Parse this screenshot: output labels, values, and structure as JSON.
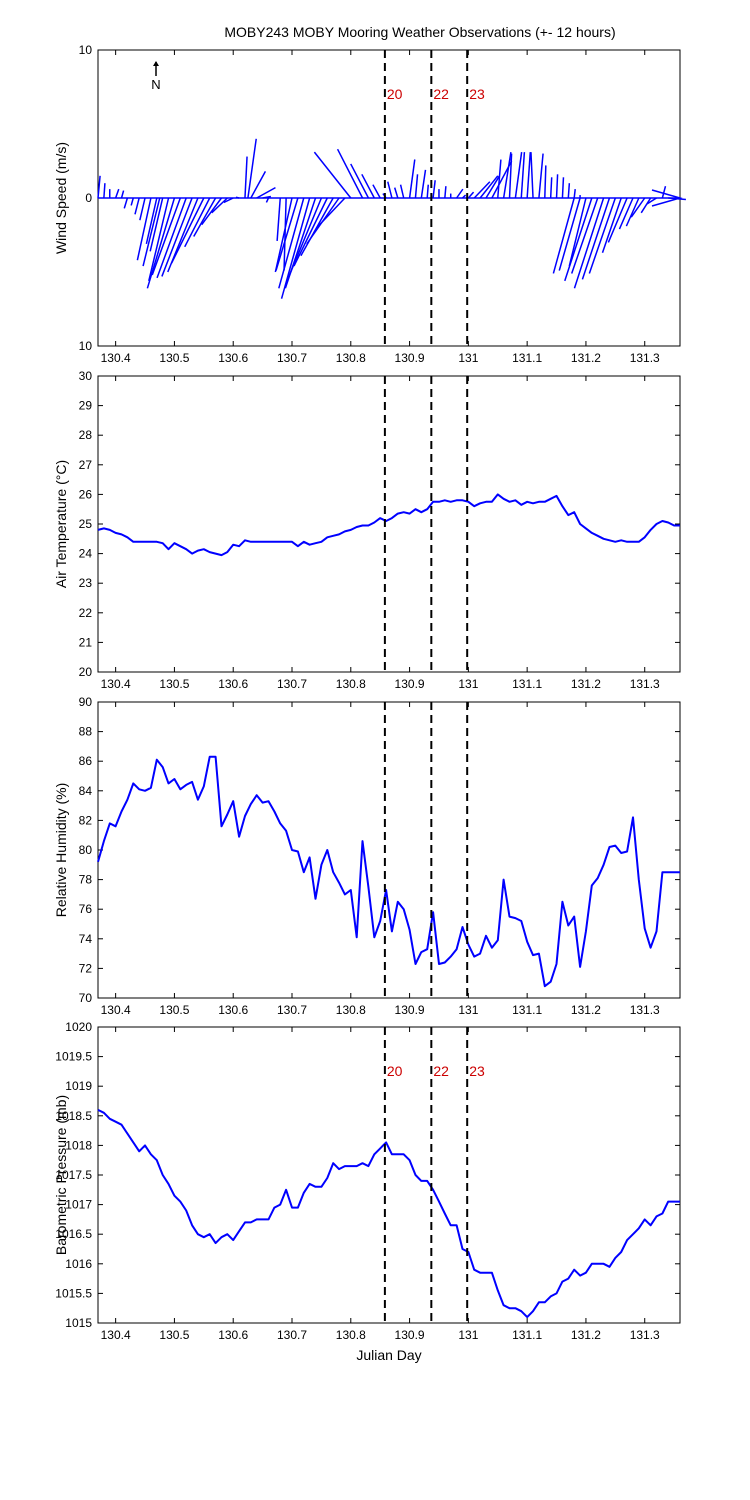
{
  "title": "MOBY243 MOBY Mooring Weather Observations (+- 12 hours)",
  "xlabel": "Julian Day",
  "colors": {
    "line": "#0000ff",
    "event_label": "#cc0000",
    "axis": "#000000"
  },
  "events": [
    {
      "label": "20",
      "x": 130.858
    },
    {
      "label": "22",
      "x": 130.937
    },
    {
      "label": "23",
      "x": 130.998
    }
  ],
  "chart_data": [
    {
      "type": "wind-stick",
      "ylabel": "Wind Speed (m/s)",
      "xlim": [
        130.37,
        131.36
      ],
      "ylim": [
        -10,
        10
      ],
      "yticks": [
        "10",
        "0",
        "10"
      ],
      "xticks": [
        "130.4",
        "130.5",
        "130.6",
        "130.7",
        "130.8",
        "130.9",
        "131",
        "131.1",
        "131.2",
        "131.3"
      ],
      "north_label": "N",
      "show_event_labels": true,
      "sticks": [
        [
          130.37,
          0.2,
          1.5
        ],
        [
          130.38,
          0.1,
          1.0
        ],
        [
          130.39,
          0.0,
          0.6
        ],
        [
          130.4,
          0.3,
          0.6
        ],
        [
          130.41,
          0.2,
          0.5
        ],
        [
          130.42,
          -0.3,
          -0.7
        ],
        [
          130.43,
          -0.2,
          -0.5
        ],
        [
          130.44,
          -0.4,
          -1.1
        ],
        [
          130.45,
          -0.5,
          -1.5
        ],
        [
          130.46,
          -1.3,
          -4.2
        ],
        [
          130.47,
          -1.0,
          -3.1
        ],
        [
          130.475,
          -1.6,
          -4.6
        ],
        [
          130.48,
          -1.2,
          -3.6
        ],
        [
          130.49,
          -1.9,
          -5.6
        ],
        [
          130.5,
          -2.6,
          -6.1
        ],
        [
          130.51,
          -2.7,
          -5.2
        ],
        [
          130.52,
          -2.8,
          -5.4
        ],
        [
          130.53,
          -2.9,
          -5.3
        ],
        [
          130.54,
          -2.9,
          -5.0
        ],
        [
          130.55,
          -3.1,
          -4.4
        ],
        [
          130.56,
          -2.4,
          -3.3
        ],
        [
          130.57,
          -2.1,
          -2.6
        ],
        [
          130.58,
          -1.9,
          -1.8
        ],
        [
          130.59,
          -1.5,
          -1.0
        ],
        [
          130.6,
          -0.9,
          -0.3
        ],
        [
          130.61,
          -0.3,
          0.05
        ],
        [
          130.62,
          0.2,
          2.8
        ],
        [
          130.625,
          0.8,
          4.0
        ],
        [
          130.63,
          1.4,
          1.8
        ],
        [
          130.64,
          1.8,
          0.7
        ],
        [
          130.65,
          0.8,
          0.1
        ],
        [
          130.66,
          -0.2,
          -0.3
        ],
        [
          130.68,
          -0.3,
          -2.9
        ],
        [
          130.69,
          -0.2,
          -4.9
        ],
        [
          130.7,
          -1.6,
          -5.0
        ],
        [
          130.71,
          -2.1,
          -4.9
        ],
        [
          130.72,
          -2.4,
          -6.1
        ],
        [
          130.73,
          -2.7,
          -6.8
        ],
        [
          130.74,
          -2.9,
          -6.1
        ],
        [
          130.75,
          -3.3,
          -5.6
        ],
        [
          130.76,
          -3.2,
          -4.6
        ],
        [
          130.77,
          -3.1,
          -3.9
        ],
        [
          130.78,
          -3.1,
          -3.1
        ],
        [
          130.79,
          -2.7,
          -2.0
        ],
        [
          130.8,
          -3.5,
          3.1
        ],
        [
          130.82,
          -2.4,
          3.3
        ],
        [
          130.83,
          -1.7,
          2.3
        ],
        [
          130.84,
          -1.2,
          1.6
        ],
        [
          130.85,
          -0.7,
          0.9
        ],
        [
          130.86,
          -0.3,
          0.3
        ],
        [
          130.87,
          -0.4,
          1.1
        ],
        [
          130.88,
          -0.3,
          0.7
        ],
        [
          130.89,
          -0.3,
          0.9
        ],
        [
          130.9,
          0.5,
          2.6
        ],
        [
          130.91,
          0.2,
          1.6
        ],
        [
          130.92,
          0.4,
          1.9
        ],
        [
          130.93,
          0.1,
          0.9
        ],
        [
          130.94,
          0.2,
          1.2
        ],
        [
          130.95,
          0.0,
          0.6
        ],
        [
          130.96,
          0.1,
          0.8
        ],
        [
          130.97,
          0.0,
          0.3
        ],
        [
          130.98,
          0.6,
          0.6
        ],
        [
          130.99,
          0.3,
          0.2
        ],
        [
          131.0,
          0.5,
          0.4
        ],
        [
          131.01,
          1.5,
          1.1
        ],
        [
          131.02,
          1.7,
          1.5
        ],
        [
          131.03,
          1.3,
          1.5
        ],
        [
          131.04,
          1.9,
          2.5
        ],
        [
          131.05,
          0.3,
          2.6
        ],
        [
          131.06,
          0.7,
          3.1
        ],
        [
          131.07,
          0.2,
          3.0
        ],
        [
          131.08,
          0.6,
          3.1
        ],
        [
          131.09,
          0.3,
          3.1
        ],
        [
          131.1,
          0.3,
          3.1
        ],
        [
          131.11,
          -0.2,
          3.1
        ],
        [
          131.12,
          0.4,
          3.0
        ],
        [
          131.13,
          0.1,
          2.2
        ],
        [
          131.14,
          0.1,
          1.4
        ],
        [
          131.15,
          0.1,
          1.6
        ],
        [
          131.16,
          0.1,
          1.4
        ],
        [
          131.17,
          0.1,
          1.0
        ],
        [
          131.18,
          0.1,
          0.6
        ],
        [
          131.19,
          0.0,
          0.2
        ],
        [
          131.18,
          -2.0,
          -5.1
        ],
        [
          131.19,
          -2.0,
          -4.9
        ],
        [
          131.2,
          -1.6,
          -4.6
        ],
        [
          131.21,
          -2.6,
          -5.6
        ],
        [
          131.22,
          -2.5,
          -5.1
        ],
        [
          131.23,
          -2.8,
          -6.1
        ],
        [
          131.24,
          -2.6,
          -5.5
        ],
        [
          131.25,
          -2.5,
          -5.1
        ],
        [
          131.26,
          -1.8,
          -3.7
        ],
        [
          131.27,
          -1.8,
          -3.0
        ],
        [
          131.28,
          -1.3,
          -2.1
        ],
        [
          131.29,
          -1.2,
          -1.9
        ],
        [
          131.3,
          -1.3,
          -1.3
        ],
        [
          131.31,
          -0.9,
          -1.0
        ],
        [
          131.32,
          -0.9,
          -0.4
        ],
        [
          131.33,
          0.3,
          0.8
        ],
        [
          131.34,
          1.7,
          -0.1
        ]
      ]
    },
    {
      "type": "line",
      "ylabel": "Air Temperature (°C)",
      "xlim": [
        130.37,
        131.36
      ],
      "ylim": [
        20,
        30
      ],
      "yticks": [
        "20",
        "21",
        "22",
        "23",
        "24",
        "25",
        "26",
        "27",
        "28",
        "29",
        "30"
      ],
      "xticks": [
        "130.4",
        "130.5",
        "130.6",
        "130.7",
        "130.8",
        "130.9",
        "131",
        "131.1",
        "131.2",
        "131.3"
      ],
      "show_event_labels": false,
      "x": [
        130.37,
        130.38,
        130.39,
        130.4,
        130.41,
        130.42,
        130.43,
        130.44,
        130.45,
        130.46,
        130.47,
        130.48,
        130.49,
        130.5,
        130.51,
        130.52,
        130.53,
        130.54,
        130.55,
        130.56,
        130.57,
        130.58,
        130.59,
        130.6,
        130.61,
        130.62,
        130.63,
        130.64,
        130.65,
        130.66,
        130.67,
        130.68,
        130.69,
        130.7,
        130.71,
        130.72,
        130.73,
        130.74,
        130.75,
        130.76,
        130.77,
        130.78,
        130.79,
        130.8,
        130.81,
        130.82,
        130.83,
        130.84,
        130.85,
        130.86,
        130.87,
        130.88,
        130.89,
        130.9,
        130.91,
        130.92,
        130.93,
        130.94,
        130.95,
        130.96,
        130.97,
        130.98,
        130.99,
        131.0,
        131.01,
        131.02,
        131.03,
        131.04,
        131.05,
        131.06,
        131.07,
        131.08,
        131.09,
        131.1,
        131.11,
        131.12,
        131.13,
        131.14,
        131.15,
        131.16,
        131.17,
        131.18,
        131.19,
        131.2,
        131.21,
        131.22,
        131.23,
        131.24,
        131.25,
        131.26,
        131.27,
        131.28,
        131.29,
        131.3,
        131.31,
        131.32,
        131.33,
        131.34,
        131.35,
        131.36
      ],
      "y": [
        24.8,
        24.85,
        24.8,
        24.7,
        24.65,
        24.55,
        24.4,
        24.4,
        24.4,
        24.4,
        24.4,
        24.35,
        24.15,
        24.35,
        24.25,
        24.15,
        24.0,
        24.1,
        24.15,
        24.05,
        24.0,
        23.95,
        24.05,
        24.3,
        24.25,
        24.45,
        24.4,
        24.4,
        24.4,
        24.4,
        24.4,
        24.4,
        24.4,
        24.4,
        24.25,
        24.4,
        24.3,
        24.35,
        24.4,
        24.55,
        24.6,
        24.65,
        24.75,
        24.8,
        24.9,
        24.95,
        24.95,
        25.05,
        25.2,
        25.1,
        25.2,
        25.35,
        25.4,
        25.35,
        25.5,
        25.4,
        25.5,
        25.75,
        25.75,
        25.8,
        25.75,
        25.8,
        25.8,
        25.75,
        25.6,
        25.7,
        25.75,
        25.75,
        26.0,
        25.85,
        25.75,
        25.8,
        25.65,
        25.75,
        25.7,
        25.75,
        25.75,
        25.85,
        25.95,
        25.6,
        25.3,
        25.4,
        25.0,
        24.85,
        24.7,
        24.6,
        24.5,
        24.45,
        24.4,
        24.45,
        24.4,
        24.4,
        24.4,
        24.55,
        24.8,
        25.0,
        25.1,
        25.05,
        24.95,
        24.95
      ]
    },
    {
      "type": "line",
      "ylabel": "Relative Humidity (%)",
      "xlim": [
        130.37,
        131.36
      ],
      "ylim": [
        70,
        90
      ],
      "yticks": [
        "70",
        "72",
        "74",
        "76",
        "78",
        "80",
        "82",
        "84",
        "86",
        "88",
        "90"
      ],
      "xticks": [
        "130.4",
        "130.5",
        "130.6",
        "130.7",
        "130.8",
        "130.9",
        "131",
        "131.1",
        "131.2",
        "131.3"
      ],
      "show_event_labels": false,
      "x": [
        130.37,
        130.38,
        130.39,
        130.4,
        130.41,
        130.42,
        130.43,
        130.44,
        130.45,
        130.46,
        130.47,
        130.48,
        130.49,
        130.5,
        130.51,
        130.52,
        130.53,
        130.54,
        130.55,
        130.56,
        130.57,
        130.58,
        130.59,
        130.6,
        130.61,
        130.62,
        130.63,
        130.64,
        130.65,
        130.66,
        130.67,
        130.68,
        130.69,
        130.7,
        130.71,
        130.72,
        130.73,
        130.74,
        130.75,
        130.76,
        130.77,
        130.78,
        130.79,
        130.8,
        130.81,
        130.82,
        130.83,
        130.84,
        130.85,
        130.86,
        130.87,
        130.88,
        130.89,
        130.9,
        130.91,
        130.92,
        130.93,
        130.94,
        130.95,
        130.96,
        130.97,
        130.98,
        130.99,
        131.0,
        131.01,
        131.02,
        131.03,
        131.04,
        131.05,
        131.06,
        131.07,
        131.08,
        131.09,
        131.1,
        131.11,
        131.12,
        131.13,
        131.14,
        131.15,
        131.16,
        131.17,
        131.18,
        131.19,
        131.2,
        131.21,
        131.22,
        131.23,
        131.24,
        131.25,
        131.26,
        131.27,
        131.28,
        131.29,
        131.3,
        131.31,
        131.32,
        131.33,
        131.34,
        131.35,
        131.36
      ],
      "y": [
        79.2,
        80.6,
        81.8,
        81.6,
        82.6,
        83.4,
        84.5,
        84.1,
        84.0,
        84.2,
        86.1,
        85.6,
        84.5,
        84.8,
        84.1,
        84.4,
        84.6,
        83.4,
        84.3,
        86.3,
        86.3,
        81.6,
        82.4,
        83.3,
        80.9,
        82.3,
        83.1,
        83.7,
        83.2,
        83.3,
        82.6,
        81.8,
        81.3,
        80.0,
        79.9,
        78.5,
        79.5,
        76.7,
        79.0,
        80.0,
        78.5,
        77.8,
        77.0,
        77.3,
        74.1,
        80.6,
        77.5,
        74.1,
        75.2,
        77.3,
        74.5,
        76.5,
        76.0,
        74.6,
        72.3,
        73.1,
        73.3,
        75.8,
        72.3,
        72.4,
        72.8,
        73.3,
        74.8,
        73.6,
        72.8,
        73.0,
        74.2,
        73.4,
        73.9,
        78.0,
        75.5,
        75.4,
        75.2,
        73.8,
        72.9,
        73.0,
        70.8,
        71.1,
        72.3,
        76.5,
        74.9,
        75.5,
        72.1,
        74.5,
        77.6,
        78.1,
        79.0,
        80.2,
        80.3,
        79.8,
        79.9,
        82.2,
        78.0,
        74.7,
        73.4,
        74.5,
        78.5,
        78.5,
        78.5,
        78.5
      ]
    },
    {
      "type": "line",
      "ylabel": "Barometric Pressure (mb)",
      "xlim": [
        130.37,
        131.36
      ],
      "ylim": [
        1015,
        1020
      ],
      "yticks": [
        "1015",
        "1015.5",
        "1016",
        "1016.5",
        "1017",
        "1017.5",
        "1018",
        "1018.5",
        "1019",
        "1019.5",
        "1020"
      ],
      "xticks": [
        "130.4",
        "130.5",
        "130.6",
        "130.7",
        "130.8",
        "130.9",
        "131",
        "131.1",
        "131.2",
        "131.3"
      ],
      "show_event_labels": true,
      "x": [
        130.37,
        130.38,
        130.39,
        130.4,
        130.41,
        130.42,
        130.43,
        130.44,
        130.45,
        130.46,
        130.47,
        130.48,
        130.49,
        130.5,
        130.51,
        130.52,
        130.53,
        130.54,
        130.55,
        130.56,
        130.57,
        130.58,
        130.59,
        130.6,
        130.61,
        130.62,
        130.63,
        130.64,
        130.65,
        130.66,
        130.67,
        130.68,
        130.69,
        130.7,
        130.71,
        130.72,
        130.73,
        130.74,
        130.75,
        130.76,
        130.77,
        130.78,
        130.79,
        130.8,
        130.81,
        130.82,
        130.83,
        130.84,
        130.85,
        130.86,
        130.87,
        130.88,
        130.89,
        130.9,
        130.91,
        130.92,
        130.93,
        130.94,
        130.95,
        130.96,
        130.97,
        130.98,
        130.99,
        131.0,
        131.01,
        131.02,
        131.03,
        131.04,
        131.05,
        131.06,
        131.07,
        131.08,
        131.09,
        131.1,
        131.11,
        131.12,
        131.13,
        131.14,
        131.15,
        131.16,
        131.17,
        131.18,
        131.19,
        131.2,
        131.21,
        131.22,
        131.23,
        131.24,
        131.25,
        131.26,
        131.27,
        131.28,
        131.29,
        131.3,
        131.31,
        131.32,
        131.33,
        131.34,
        131.35,
        131.36
      ],
      "y": [
        1018.6,
        1018.55,
        1018.45,
        1018.4,
        1018.35,
        1018.2,
        1018.05,
        1017.9,
        1018.0,
        1017.85,
        1017.75,
        1017.5,
        1017.35,
        1017.15,
        1017.05,
        1016.9,
        1016.65,
        1016.5,
        1016.45,
        1016.5,
        1016.35,
        1016.45,
        1016.5,
        1016.4,
        1016.55,
        1016.7,
        1016.7,
        1016.75,
        1016.75,
        1016.75,
        1016.95,
        1017.0,
        1017.25,
        1016.95,
        1016.95,
        1017.2,
        1017.35,
        1017.3,
        1017.3,
        1017.45,
        1017.7,
        1017.6,
        1017.65,
        1017.65,
        1017.65,
        1017.7,
        1017.65,
        1017.85,
        1017.95,
        1018.05,
        1017.85,
        1017.85,
        1017.85,
        1017.75,
        1017.5,
        1017.4,
        1017.4,
        1017.25,
        1017.05,
        1016.85,
        1016.65,
        1016.65,
        1016.25,
        1016.2,
        1015.9,
        1015.85,
        1015.85,
        1015.85,
        1015.55,
        1015.3,
        1015.25,
        1015.25,
        1015.2,
        1015.1,
        1015.2,
        1015.35,
        1015.35,
        1015.45,
        1015.5,
        1015.7,
        1015.75,
        1015.9,
        1015.8,
        1015.85,
        1016.0,
        1016.0,
        1016.0,
        1015.95,
        1016.1,
        1016.2,
        1016.4,
        1016.5,
        1016.6,
        1016.75,
        1016.65,
        1016.8,
        1016.85,
        1017.05,
        1017.05,
        1017.05
      ]
    }
  ]
}
